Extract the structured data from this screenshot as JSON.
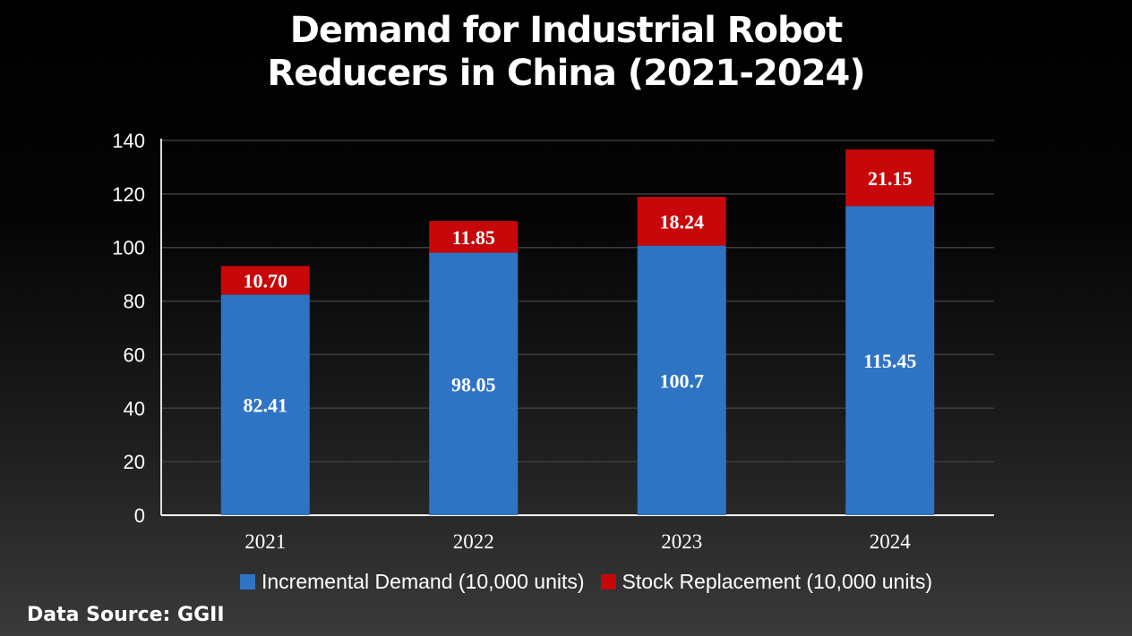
{
  "chart_data": {
    "type": "bar",
    "stacked": true,
    "title_lines": [
      "Demand for Industrial Robot",
      "Reducers in China (2021-2024)"
    ],
    "categories": [
      "2021",
      "2022",
      "2023",
      "2024"
    ],
    "series": [
      {
        "name": "Incremental Demand (10,000 units)",
        "color": "#2f74c4",
        "values": [
          82.41,
          98.05,
          100.7,
          115.45
        ],
        "labels": [
          "82.41",
          "98.05",
          "100.7",
          "115.45"
        ]
      },
      {
        "name": "Stock Replacement (10,000 units)",
        "color": "#c8070b",
        "values": [
          10.7,
          11.85,
          18.24,
          21.15
        ],
        "labels": [
          "10.70",
          "11.85",
          "18.24",
          "21.15"
        ]
      }
    ],
    "ylim": [
      0,
      140
    ],
    "yticks": [
      0,
      20,
      40,
      60,
      80,
      100,
      120,
      140
    ],
    "grid": true,
    "legend": "bottom",
    "source": "Data Source: GGII"
  }
}
